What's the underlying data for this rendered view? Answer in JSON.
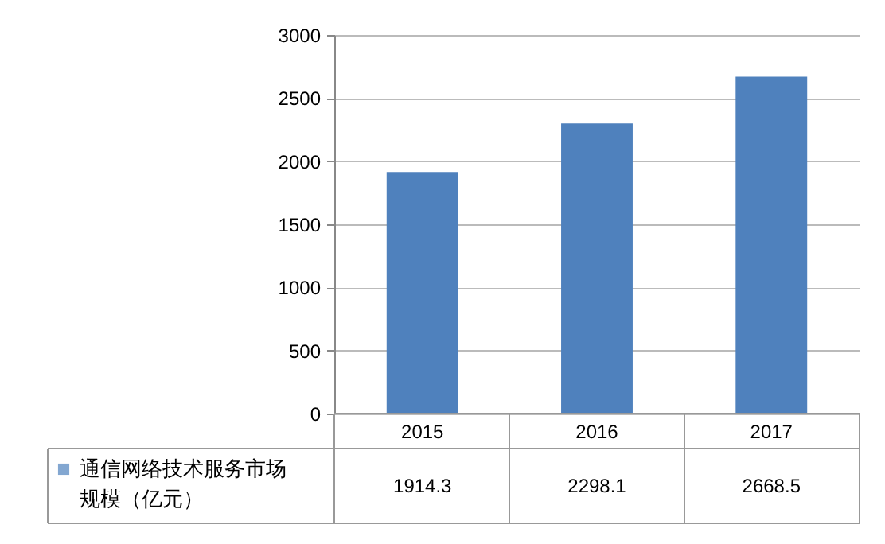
{
  "chart_data": {
    "type": "bar",
    "categories": [
      "2015",
      "2016",
      "2017"
    ],
    "series": [
      {
        "name": "通信网络技术服务市场规模（亿元）",
        "color": "#4f81bd",
        "values": [
          1914.3,
          2298.1,
          2668.5
        ]
      }
    ],
    "ylim": [
      0,
      3000
    ],
    "yticks": [
      0,
      500,
      1000,
      1500,
      2000,
      2500,
      3000
    ],
    "grid": "y",
    "legend": "bottom left",
    "data_labels": true
  }
}
